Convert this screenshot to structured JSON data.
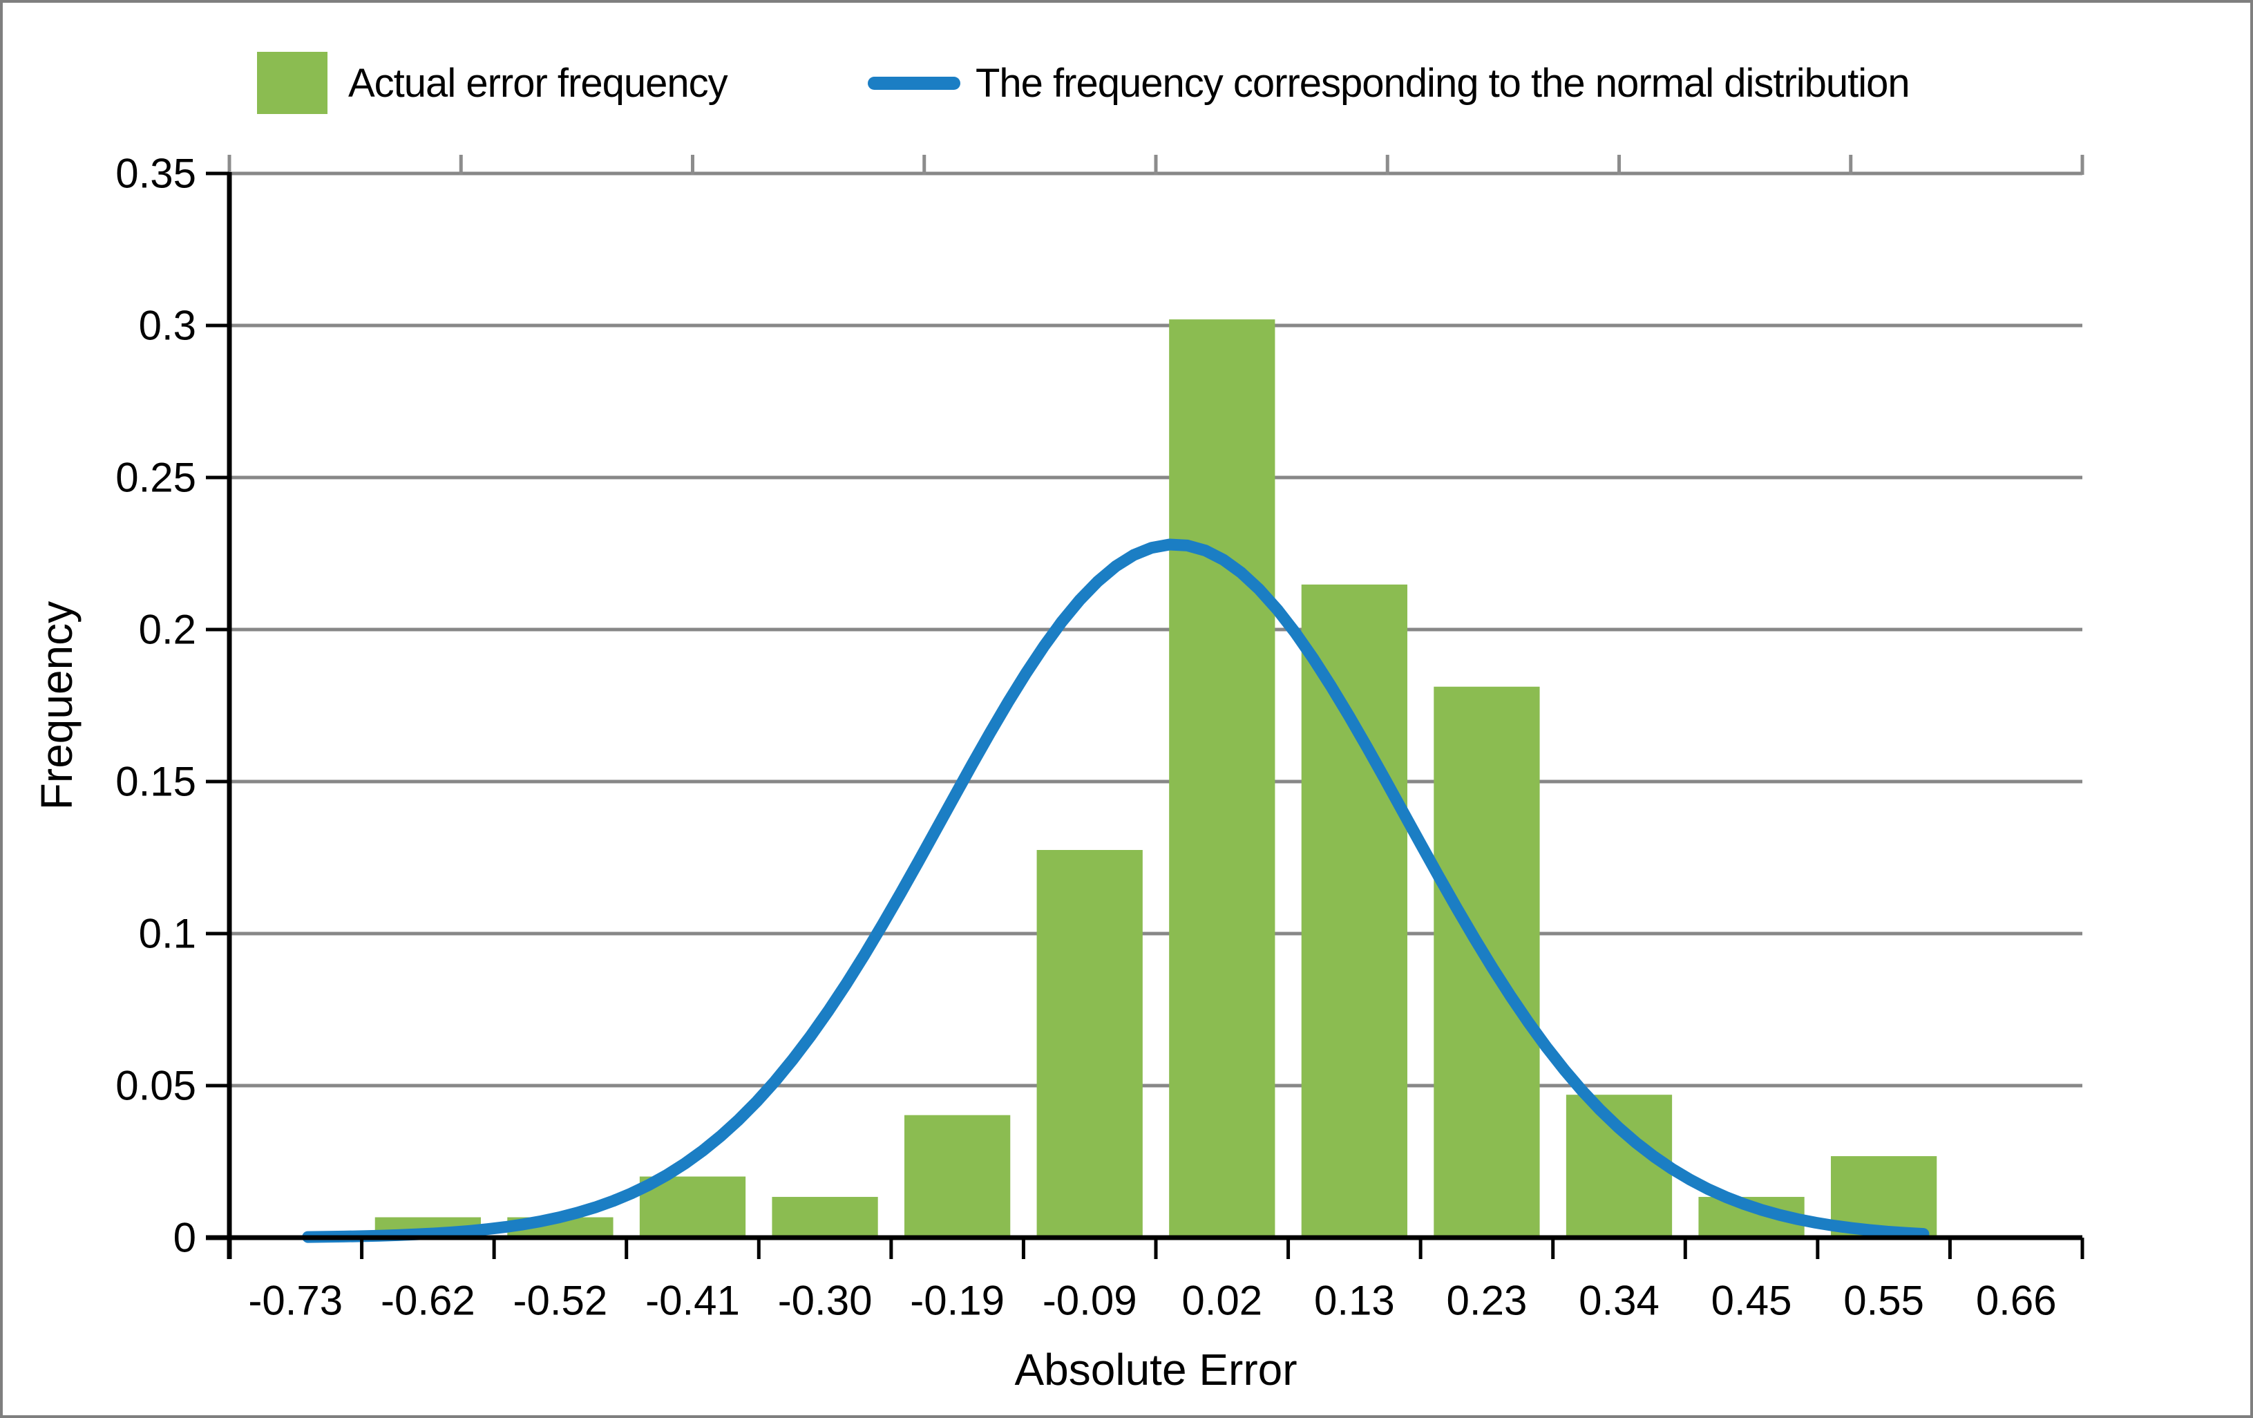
{
  "figure": {
    "background": "#ffffff",
    "border_color": "#7f7f7f"
  },
  "legend": {
    "position": "top",
    "items": [
      {
        "label": "Actual error frequency",
        "swatch": "green-rectangle",
        "color": "#8BBC51"
      },
      {
        "label": "The frequency corresponding to the normal distribution",
        "swatch": "blue-line",
        "color": "#1B7EC4"
      }
    ]
  },
  "axes": {
    "x_title": "Absolute Error",
    "y_title": "Frequency"
  },
  "colors": {
    "bar_fill": "#8BBC51",
    "curve_stroke": "#1B7EC4",
    "gridline": "#878787",
    "top_tick": "#8c8c8c",
    "axis_line": "#000000",
    "tick_label": "#000000"
  },
  "chart_data": {
    "type": "bar",
    "subtype": "histogram-with-normal-curve-overlay",
    "title": "",
    "xlabel": "Absolute Error",
    "ylabel": "Frequency",
    "categories": [
      "-0.73",
      "-0.62",
      "-0.52",
      "-0.41",
      "-0.30",
      "-0.19",
      "-0.09",
      "0.02",
      "0.13",
      "0.23",
      "0.34",
      "0.45",
      "0.55",
      "0.66"
    ],
    "y_tick_labels": [
      "0",
      "0.05",
      "0.1",
      "0.15",
      "0.2",
      "0.25",
      "0.3",
      "0.35"
    ],
    "ylim": [
      0,
      0.35
    ],
    "y_gridline_step": 0.05,
    "grid": "horizontal-gray-lines-behind-bars",
    "legend_position": "top",
    "series": [
      {
        "name": "Actual error frequency",
        "type": "bar",
        "values": [
          0,
          0.0067,
          0.0067,
          0.0201,
          0.0134,
          0.0403,
          0.1275,
          0.302,
          0.2148,
          0.1812,
          0.047,
          0.0134,
          0.0268,
          0
        ]
      },
      {
        "name": "The frequency corresponding to the normal distribution",
        "type": "line",
        "shape": "gaussian",
        "gaussian": {
          "mean": -0.02,
          "sigma": 0.187,
          "peak_y": 0.228,
          "x_start": -0.72,
          "x_end": 0.585
        },
        "anchor_points": [
          {
            "x": -0.62,
            "y": 0.001
          },
          {
            "x": -0.52,
            "y": 0.006
          },
          {
            "x": -0.41,
            "y": 0.025
          },
          {
            "x": -0.3,
            "y": 0.075
          },
          {
            "x": -0.19,
            "y": 0.151
          },
          {
            "x": -0.09,
            "y": 0.212
          },
          {
            "x": -0.02,
            "y": 0.228
          },
          {
            "x": 0.02,
            "y": 0.223
          },
          {
            "x": 0.13,
            "y": 0.168
          },
          {
            "x": 0.23,
            "y": 0.093
          },
          {
            "x": 0.34,
            "y": 0.035
          },
          {
            "x": 0.45,
            "y": 0.01
          },
          {
            "x": 0.55,
            "y": 0.002
          }
        ]
      }
    ]
  }
}
